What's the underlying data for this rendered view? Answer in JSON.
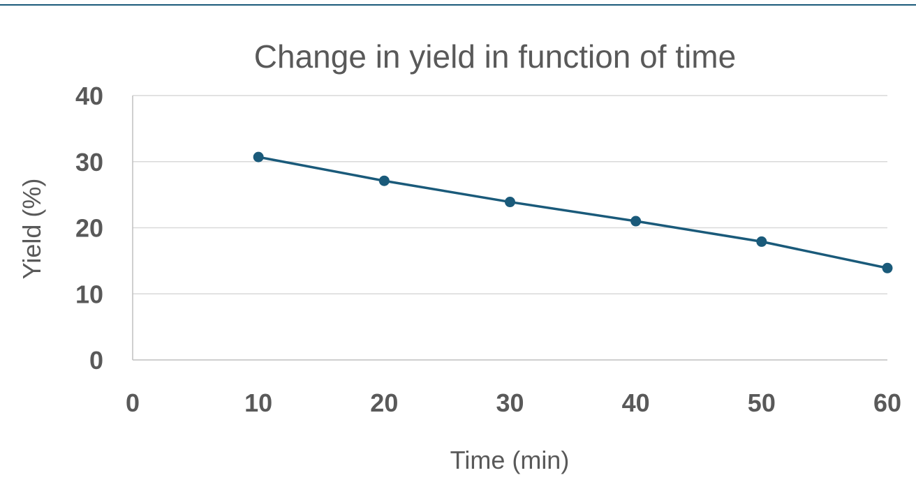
{
  "chart_data": {
    "type": "line",
    "title": "Change in yield in function of time",
    "xlabel": "Time (min)",
    "ylabel": "Yield (%)",
    "xlim": [
      0,
      60
    ],
    "ylim": [
      0,
      40
    ],
    "xticks": [
      0,
      10,
      20,
      30,
      40,
      50,
      60
    ],
    "yticks": [
      0,
      10,
      20,
      30,
      40
    ],
    "grid": true,
    "legend": "none",
    "color": "#1a5a7a",
    "series": [
      {
        "x": [
          10,
          20,
          30,
          40,
          50,
          60
        ],
        "y": [
          30.7,
          27.1,
          23.9,
          21.0,
          17.9,
          13.9
        ]
      }
    ]
  }
}
